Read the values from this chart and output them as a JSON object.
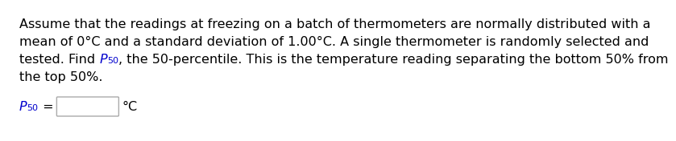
{
  "background_color": "#ffffff",
  "line1": "Assume that the readings at freezing on a batch of thermometers are normally distributed with a",
  "line2": "mean of 0°C and a standard deviation of 1.00°C. A single thermometer is randomly selected and",
  "line3a": "tested. Find ",
  "line3b_italic": "P",
  "line3b_sub": "50",
  "line3c": ", the 50-percentile. This is the temperature reading separating the bottom 50% from",
  "line4": "the top 50%.",
  "label_P": "P",
  "label_sub": "50",
  "label_eq": " = ",
  "degree_c": "°C",
  "text_color": "#000000",
  "blue_color": "#0000cd",
  "font_size": 11.5,
  "sub_font_size": 8.0
}
